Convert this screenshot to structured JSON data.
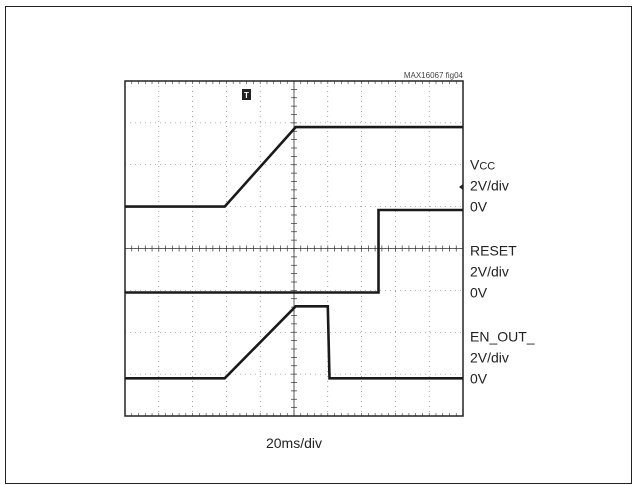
{
  "figure_id": "MAX16067 fig04",
  "timebase_label": "20ms/div",
  "trigger_marker": "T",
  "chart_data": {
    "type": "line",
    "title": "",
    "xlabel": "20ms/div",
    "ylabel": "",
    "grid": true,
    "x_divisions": 10,
    "y_divisions": 8,
    "x_unit": "div",
    "xlim": [
      0,
      10
    ],
    "ylim": [
      0,
      8
    ],
    "series": [
      {
        "name": "Vcc",
        "label_main": "V",
        "label_sub": "CC",
        "scale": "2V/div",
        "zero_label": "0V",
        "ground_div": 5.0,
        "points": [
          [
            0,
            5.0
          ],
          [
            2.95,
            5.0
          ],
          [
            5.05,
            6.9
          ],
          [
            10,
            6.9
          ]
        ]
      },
      {
        "name": "RESET",
        "label_main": "RESET",
        "scale": "2V/div",
        "zero_label": "0V",
        "ground_div": 2.95,
        "points": [
          [
            0,
            2.95
          ],
          [
            7.5,
            2.95
          ],
          [
            7.5,
            4.92
          ],
          [
            10,
            4.92
          ]
        ]
      },
      {
        "name": "EN_OUT_",
        "label_main": "EN_OUT_",
        "scale": "2V/div",
        "zero_label": "0V",
        "ground_div": 0.9,
        "points": [
          [
            0,
            0.9
          ],
          [
            2.95,
            0.9
          ],
          [
            5.05,
            2.62
          ],
          [
            6.0,
            2.62
          ],
          [
            6.05,
            0.9
          ],
          [
            10,
            0.9
          ]
        ]
      }
    ]
  }
}
